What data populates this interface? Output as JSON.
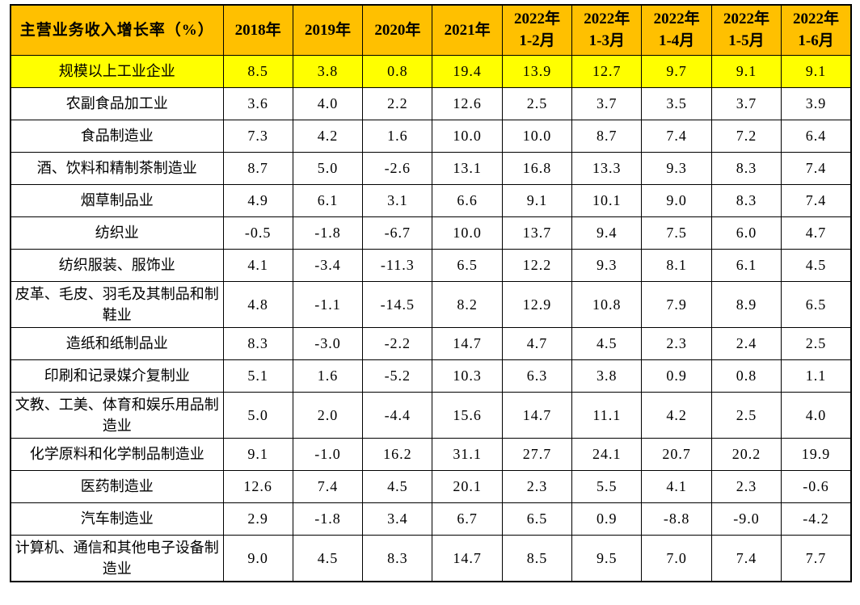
{
  "chart_data": {
    "type": "table",
    "title": "主营业务收入增长率（%）",
    "columns": [
      [
        "2018年"
      ],
      [
        "2019年"
      ],
      [
        "2020年"
      ],
      [
        "2021年"
      ],
      [
        "2022年",
        "1-2月"
      ],
      [
        "2022年",
        "1-3月"
      ],
      [
        "2022年",
        "1-4月"
      ],
      [
        "2022年",
        "1-5月"
      ],
      [
        "2022年",
        "1-6月"
      ]
    ],
    "rows": [
      {
        "label": "规模以上工业企业",
        "highlight": true,
        "values": [
          "8.5",
          "3.8",
          "0.8",
          "19.4",
          "13.9",
          "12.7",
          "9.7",
          "9.1",
          "9.1"
        ]
      },
      {
        "label": "农副食品加工业",
        "highlight": false,
        "values": [
          "3.6",
          "4.0",
          "2.2",
          "12.6",
          "2.5",
          "3.7",
          "3.5",
          "3.7",
          "3.9"
        ]
      },
      {
        "label": "食品制造业",
        "highlight": false,
        "values": [
          "7.3",
          "4.2",
          "1.6",
          "10.0",
          "10.0",
          "8.7",
          "7.4",
          "7.2",
          "6.4"
        ]
      },
      {
        "label": "酒、饮料和精制茶制造业",
        "highlight": false,
        "values": [
          "8.7",
          "5.0",
          "-2.6",
          "13.1",
          "16.8",
          "13.3",
          "9.3",
          "8.3",
          "7.4"
        ]
      },
      {
        "label": "烟草制品业",
        "highlight": false,
        "values": [
          "4.9",
          "6.1",
          "3.1",
          "6.6",
          "9.1",
          "10.1",
          "9.0",
          "8.3",
          "7.4"
        ]
      },
      {
        "label": "纺织业",
        "highlight": false,
        "values": [
          "-0.5",
          "-1.8",
          "-6.7",
          "10.0",
          "13.7",
          "9.4",
          "7.5",
          "6.0",
          "4.7"
        ]
      },
      {
        "label": "纺织服装、服饰业",
        "highlight": false,
        "values": [
          "4.1",
          "-3.4",
          "-11.3",
          "6.5",
          "12.2",
          "9.3",
          "8.1",
          "6.1",
          "4.5"
        ]
      },
      {
        "label": "皮革、毛皮、羽毛及其制品和制鞋业",
        "highlight": false,
        "values": [
          "4.8",
          "-1.1",
          "-14.5",
          "8.2",
          "12.9",
          "10.8",
          "7.9",
          "8.9",
          "6.5"
        ]
      },
      {
        "label": "造纸和纸制品业",
        "highlight": false,
        "values": [
          "8.3",
          "-3.0",
          "-2.2",
          "14.7",
          "4.7",
          "4.5",
          "2.3",
          "2.4",
          "2.5"
        ]
      },
      {
        "label": "印刷和记录媒介复制业",
        "highlight": false,
        "values": [
          "5.1",
          "1.6",
          "-5.2",
          "10.3",
          "6.3",
          "3.8",
          "0.9",
          "0.8",
          "1.1"
        ]
      },
      {
        "label": "文教、工美、体育和娱乐用品制造业",
        "highlight": false,
        "values": [
          "5.0",
          "2.0",
          "-4.4",
          "15.6",
          "14.7",
          "11.1",
          "4.2",
          "2.5",
          "4.0"
        ]
      },
      {
        "label": "化学原料和化学制品制造业",
        "highlight": false,
        "values": [
          "9.1",
          "-1.0",
          "16.2",
          "31.1",
          "27.7",
          "24.1",
          "20.7",
          "20.2",
          "19.9"
        ]
      },
      {
        "label": "医药制造业",
        "highlight": false,
        "values": [
          "12.6",
          "7.4",
          "4.5",
          "20.1",
          "2.3",
          "5.5",
          "4.1",
          "2.3",
          "-0.6"
        ]
      },
      {
        "label": "汽车制造业",
        "highlight": false,
        "values": [
          "2.9",
          "-1.8",
          "3.4",
          "6.7",
          "6.5",
          "0.9",
          "-8.8",
          "-9.0",
          "-4.2"
        ]
      },
      {
        "label": "计算机、通信和其他电子设备制造业",
        "highlight": false,
        "values": [
          "9.0",
          "4.5",
          "8.3",
          "14.7",
          "8.5",
          "9.5",
          "7.0",
          "7.4",
          "7.7"
        ]
      }
    ],
    "colors": {
      "header_bg": "#FFC000",
      "highlight_bg": "#FFFF00",
      "border": "#000000",
      "text": "#000000",
      "page_bg": "#FFFFFF"
    },
    "layout": {
      "legend": "none",
      "grid": "full-borders",
      "highlight_row": "规模以上工业企业"
    }
  }
}
